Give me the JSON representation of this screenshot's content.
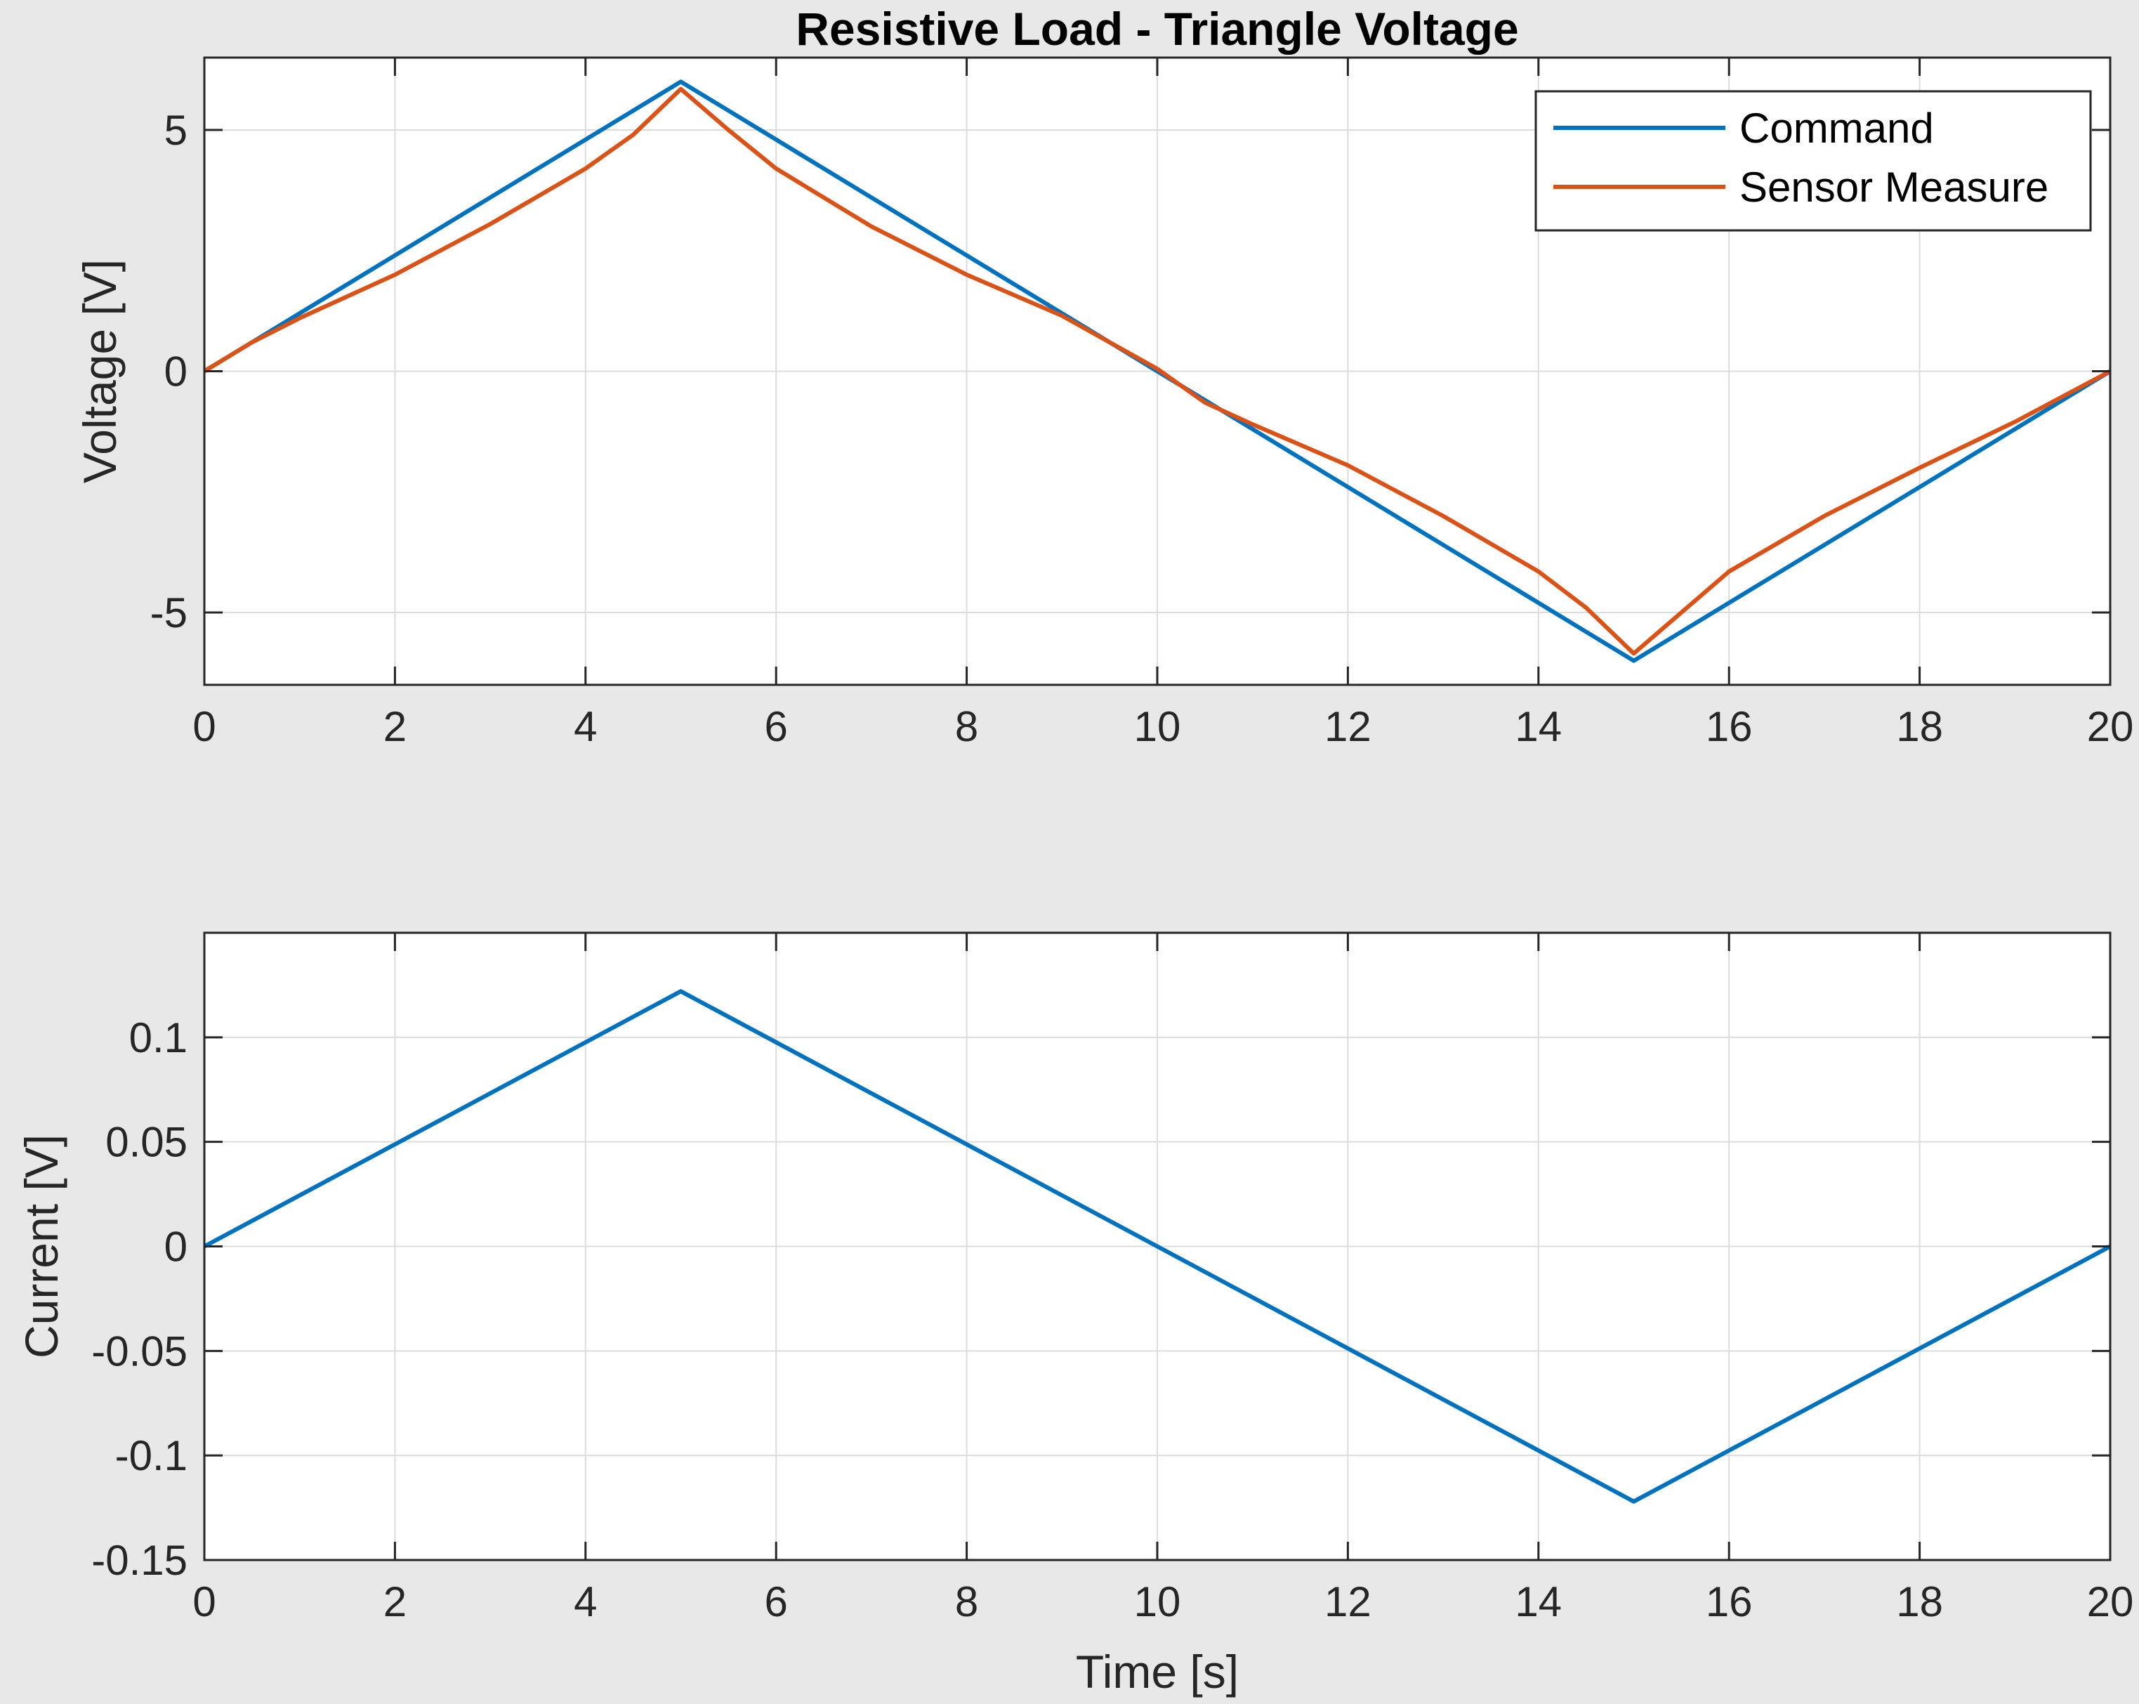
{
  "chart_data": [
    {
      "type": "line",
      "title": "Resistive Load - Triangle Voltage",
      "xlabel": "",
      "ylabel": "Voltage [V]",
      "xlim": [
        0,
        20
      ],
      "ylim": [
        -6.5,
        6.5
      ],
      "xticks": [
        0,
        2,
        4,
        6,
        8,
        10,
        12,
        14,
        16,
        18,
        20
      ],
      "xtick_labels": [
        "0",
        "2",
        "4",
        "6",
        "8",
        "10",
        "12",
        "14",
        "16",
        "18",
        "20"
      ],
      "yticks": [
        -5,
        0,
        5
      ],
      "ytick_labels": [
        "-5",
        "0",
        "5"
      ],
      "grid": true,
      "legend_position": "top-right",
      "series": [
        {
          "name": "Command",
          "color": "#0072BD",
          "x": [
            0,
            5,
            15,
            20
          ],
          "y": [
            0,
            6,
            -6,
            0
          ]
        },
        {
          "name": "Sensor Measure",
          "color": "#D95319",
          "x": [
            0,
            0.5,
            1,
            2,
            3,
            4,
            4.5,
            5,
            5.5,
            6,
            7,
            8,
            9,
            10,
            10.5,
            11,
            12,
            13,
            14,
            14.5,
            15,
            15.5,
            16,
            17,
            18,
            19,
            20
          ],
          "y": [
            0,
            0.6,
            1.1,
            2.0,
            3.05,
            4.2,
            4.9,
            5.85,
            5.0,
            4.2,
            3.0,
            2.0,
            1.15,
            0.05,
            -0.65,
            -1.1,
            -1.95,
            -3.0,
            -4.15,
            -4.9,
            -5.85,
            -5.0,
            -4.15,
            -3.0,
            -2.0,
            -1.05,
            0
          ]
        }
      ]
    },
    {
      "type": "line",
      "title": "",
      "xlabel": "Time [s]",
      "ylabel": "Current [V]",
      "xlim": [
        0,
        20
      ],
      "ylim": [
        -0.15,
        0.15
      ],
      "xticks": [
        0,
        2,
        4,
        6,
        8,
        10,
        12,
        14,
        16,
        18,
        20
      ],
      "xtick_labels": [
        "0",
        "2",
        "4",
        "6",
        "8",
        "10",
        "12",
        "14",
        "16",
        "18",
        "20"
      ],
      "yticks": [
        -0.15,
        -0.1,
        -0.05,
        0,
        0.05,
        0.1
      ],
      "ytick_labels": [
        "-0.15",
        "-0.1",
        "-0.05",
        "0",
        "0.05",
        "0.1"
      ],
      "grid": true,
      "series": [
        {
          "color": "#0072BD",
          "x": [
            0,
            5,
            10,
            15,
            20
          ],
          "y": [
            0,
            0.122,
            0,
            -0.122,
            0
          ]
        }
      ]
    }
  ]
}
